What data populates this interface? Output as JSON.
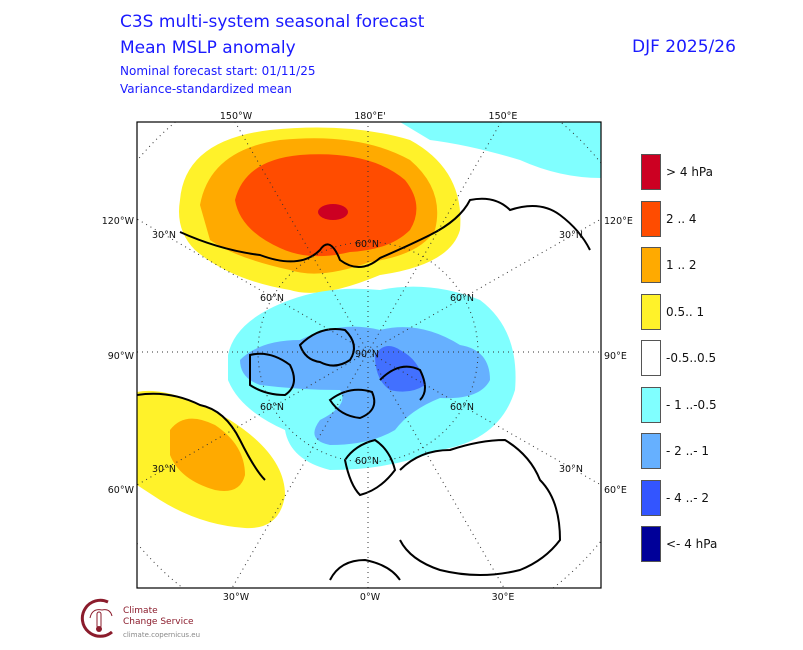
{
  "header": {
    "title": "C3S multi-system seasonal forecast",
    "subtitle": "Mean MSLP anomaly",
    "forecast_start": "Nominal forecast start: 01/11/25",
    "method": "Variance-standardized mean",
    "season": "DJF 2025/26"
  },
  "map": {
    "projection": "north polar stereographic",
    "top_labels": [
      "150°W",
      "180°E'",
      "150°E"
    ],
    "bottom_labels": [
      "30°W",
      "0°W",
      "30°E"
    ],
    "left_labels": [
      "120°W",
      "90°W",
      "60°W"
    ],
    "right_labels": [
      "120°E",
      "90°E",
      "60°E"
    ],
    "lat_labels": {
      "n90": "90°N",
      "n60": "60°N",
      "n30": "30°N"
    }
  },
  "legend": {
    "unit": "hPa",
    "items": [
      {
        "label": ">  4 hPa",
        "color": "#cc0022"
      },
      {
        "label": "2 .. 4",
        "color": "#ff4c00"
      },
      {
        "label": "1 .. 2",
        "color": "#ffaa00"
      },
      {
        "label": "0.5.. 1",
        "color": "#fff22a"
      },
      {
        "label": "-0.5..0.5",
        "color": "#ffffff"
      },
      {
        "label": "- 1 ..-0.5",
        "color": "#80ffff"
      },
      {
        "label": "- 2 ..- 1",
        "color": "#66b0ff"
      },
      {
        "label": "- 4 ..- 2",
        "color": "#3355ff"
      },
      {
        "label": "<- 4 hPa",
        "color": "#000099"
      }
    ]
  },
  "logo": {
    "line1": "Climate",
    "line2": "Change Service",
    "url": "climate.copernicus.eu"
  }
}
